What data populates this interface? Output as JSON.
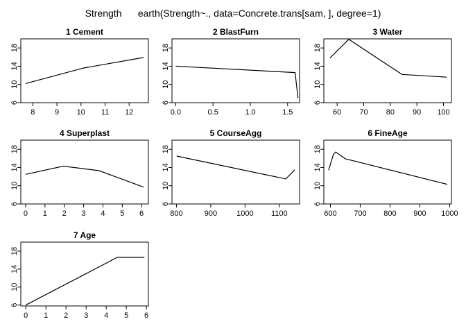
{
  "figure": {
    "title": "Strength      earth(Strength~., data=Concrete.trans[sam, ], degree=1)"
  },
  "chart_data": [
    {
      "type": "line",
      "title": "1  Cement",
      "xlim": [
        7.5,
        12.8
      ],
      "ylim": [
        6,
        20
      ],
      "xticks": [
        8,
        9,
        10,
        11,
        12
      ],
      "yticks": [
        6,
        10,
        14,
        18
      ],
      "x": [
        7.7,
        10.1,
        12.6
      ],
      "y": [
        10.2,
        13.6,
        15.9
      ]
    },
    {
      "type": "line",
      "title": "2  BlastFurn",
      "xlim": [
        -0.05,
        1.66
      ],
      "ylim": [
        6,
        20
      ],
      "xticks": [
        0.0,
        0.5,
        1.0,
        1.5
      ],
      "yticks": [
        6,
        10,
        14,
        18
      ],
      "x": [
        0.0,
        1.6,
        1.64
      ],
      "y": [
        14.0,
        12.6,
        7.0
      ]
    },
    {
      "type": "line",
      "title": "3  Water",
      "xlim": [
        55,
        103
      ],
      "ylim": [
        6,
        20
      ],
      "xticks": [
        60,
        70,
        80,
        90,
        100
      ],
      "yticks": [
        6,
        10,
        14,
        18
      ],
      "x": [
        57.3,
        64.4,
        84.4,
        101.2
      ],
      "y": [
        15.8,
        19.9,
        12.2,
        11.6
      ]
    },
    {
      "type": "line",
      "title": "4  Superplast",
      "xlim": [
        -0.25,
        6.35
      ],
      "ylim": [
        6,
        20
      ],
      "xticks": [
        0,
        1,
        2,
        3,
        4,
        5,
        6
      ],
      "yticks": [
        6,
        10,
        14,
        18
      ],
      "x": [
        0.0,
        1.95,
        3.8,
        6.1
      ],
      "y": [
        12.5,
        14.3,
        13.3,
        9.7
      ]
    },
    {
      "type": "line",
      "title": "5  CourseAgg",
      "xlim": [
        787,
        1159
      ],
      "ylim": [
        6,
        20
      ],
      "xticks": [
        800,
        900,
        1000,
        1100
      ],
      "yticks": [
        6,
        10,
        14,
        18
      ],
      "x": [
        801,
        1119,
        1145
      ],
      "y": [
        16.5,
        11.5,
        13.5
      ]
    },
    {
      "type": "line",
      "title": "6  FineAge",
      "xlim": [
        578,
        1006
      ],
      "ylim": [
        6,
        20
      ],
      "xticks": [
        600,
        700,
        800,
        900,
        1000
      ],
      "yticks": [
        6,
        10,
        14,
        18
      ],
      "x": [
        594,
        610,
        618,
        650,
        992
      ],
      "y": [
        13.4,
        16.9,
        17.4,
        15.9,
        10.3
      ]
    },
    {
      "type": "line",
      "title": "7  Age",
      "xlim": [
        -0.25,
        6.1
      ],
      "ylim": [
        5.8,
        20
      ],
      "xticks": [
        0,
        1,
        2,
        3,
        4,
        5,
        6
      ],
      "yticks": [
        6,
        10,
        14,
        18
      ],
      "x": [
        0.0,
        4.55,
        5.9
      ],
      "y": [
        6.0,
        16.6,
        16.6
      ]
    }
  ]
}
